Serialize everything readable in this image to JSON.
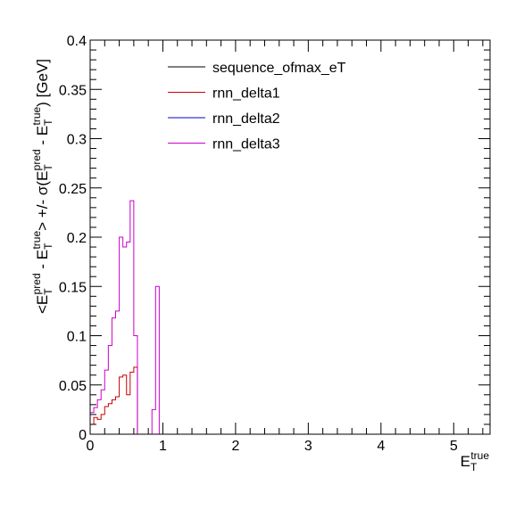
{
  "chart_data": {
    "type": "line",
    "xlabel": "E_T^true",
    "ylabel": "<E_T^pred - E_T^true> +/- σ(E_T^pred - E_T^true) [GeV]",
    "xlim": [
      0,
      5.5
    ],
    "ylim": [
      0,
      0.4
    ],
    "x_ticks": [
      0,
      1,
      2,
      3,
      4,
      5
    ],
    "y_ticks": [
      0,
      0.05,
      0.1,
      0.15,
      0.2,
      0.25,
      0.3,
      0.35,
      0.4
    ],
    "x_tick_labels": [
      "0",
      "1",
      "2",
      "3",
      "4",
      "5"
    ],
    "y_tick_labels": [
      "0",
      "0.05",
      "0.1",
      "0.15",
      "0.2",
      "0.25",
      "0.3",
      "0.35",
      "0.4"
    ],
    "bin_width": 0.05,
    "legend_position": "top-center",
    "series": [
      {
        "name": "sequence_ofmax_eT",
        "color": "#000000",
        "bins": [
          [
            0.0,
            0.0
          ]
        ]
      },
      {
        "name": "rnn_delta1",
        "color": "#cc0000",
        "bins": [
          [
            0.0,
            0.01
          ],
          [
            0.05,
            0.017
          ],
          [
            0.1,
            0.015
          ],
          [
            0.15,
            0.02
          ],
          [
            0.2,
            0.028
          ],
          [
            0.25,
            0.031
          ],
          [
            0.3,
            0.035
          ],
          [
            0.35,
            0.038
          ],
          [
            0.4,
            0.058
          ],
          [
            0.45,
            0.06
          ],
          [
            0.5,
            0.04
          ],
          [
            0.55,
            0.063
          ],
          [
            0.6,
            0.068
          ]
        ]
      },
      {
        "name": "rnn_delta2",
        "color": "#0000cc",
        "bins": [
          [
            0.0,
            0.0
          ]
        ]
      },
      {
        "name": "rnn_delta3",
        "color": "#cc00cc",
        "bins": [
          [
            0.0,
            0.022
          ],
          [
            0.05,
            0.027
          ],
          [
            0.1,
            0.035
          ],
          [
            0.15,
            0.045
          ],
          [
            0.2,
            0.065
          ],
          [
            0.25,
            0.09
          ],
          [
            0.3,
            0.118
          ],
          [
            0.35,
            0.125
          ],
          [
            0.4,
            0.2
          ],
          [
            0.45,
            0.19
          ],
          [
            0.5,
            0.195
          ],
          [
            0.55,
            0.237
          ],
          [
            0.6,
            0.1
          ],
          [
            0.85,
            0.025
          ],
          [
            0.9,
            0.15
          ]
        ]
      }
    ]
  }
}
